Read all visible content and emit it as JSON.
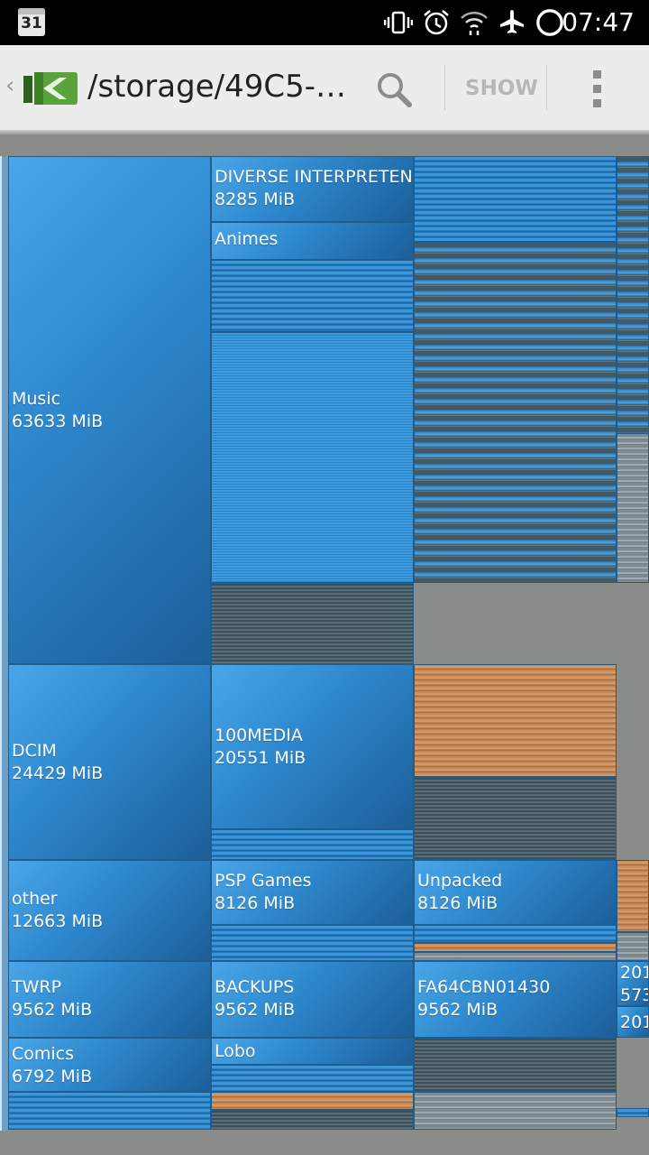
{
  "status_bar": {
    "calendar_day": "31",
    "time": "07:47",
    "icons": [
      "vibrate-icon",
      "alarm-icon",
      "wifi-icon",
      "airplane-icon",
      "circle-icon"
    ]
  },
  "action_bar": {
    "back_glyph": "‹",
    "title": "/storage/49C5-…",
    "show_label": "SHOW",
    "icons": [
      "app-logo-icon",
      "search-icon",
      "overflow-menu-icon"
    ]
  },
  "treemap": {
    "music": {
      "name": "Music",
      "size": "63633 MiB"
    },
    "diverse": {
      "name": "DIVERSE INTERPRETEN",
      "size": "8285 MiB"
    },
    "animes": {
      "name": "Animes"
    },
    "dcim": {
      "name": "DCIM",
      "size": "24429 MiB"
    },
    "media100": {
      "name": "100MEDIA",
      "size": "20551 MiB"
    },
    "other": {
      "name": "other",
      "size": "12663 MiB"
    },
    "psp": {
      "name": "PSP Games",
      "size": "8126 MiB"
    },
    "unpacked": {
      "name": "Unpacked",
      "size": "8126 MiB"
    },
    "twrp": {
      "name": "TWRP",
      "size": "9562 MiB"
    },
    "backups": {
      "name": "BACKUPS",
      "size": "9562 MiB"
    },
    "fa64": {
      "name": "FA64CBN01430",
      "size": "9562 MiB"
    },
    "edge1": {
      "name": "201",
      "size": "573"
    },
    "edge2": {
      "name": "201"
    },
    "comics": {
      "name": "Comics",
      "size": "6792 MiB"
    },
    "lobo": {
      "name": "Lobo"
    }
  },
  "colors": {
    "folder_blue": "#2d86cb",
    "media_orange": "#c8895a",
    "empty_gray": "#8a8c8a"
  }
}
